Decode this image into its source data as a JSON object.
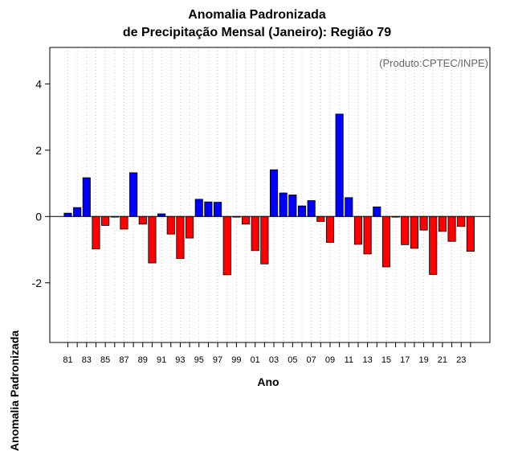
{
  "chart_data": {
    "type": "bar",
    "title": "Anomalia Padronizada",
    "subtitle": "de Precipitação Mensal (Janeiro): Região 79",
    "xlabel": "Ano",
    "ylabel": "Anomalia Padronizada",
    "annotation": "(Produto:CPTEC/INPE)",
    "ylim": [
      -3.8,
      5.1
    ],
    "yticks": [
      -2,
      0,
      2,
      4
    ],
    "xtick_labels": [
      "81",
      "83",
      "85",
      "87",
      "89",
      "91",
      "93",
      "95",
      "97",
      "99",
      "01",
      "03",
      "05",
      "07",
      "09",
      "11",
      "13",
      "15",
      "17",
      "19",
      "21",
      "23"
    ],
    "categories": [
      "1981",
      "1982",
      "1983",
      "1984",
      "1985",
      "1986",
      "1987",
      "1988",
      "1989",
      "1990",
      "1991",
      "1992",
      "1993",
      "1994",
      "1995",
      "1996",
      "1997",
      "1998",
      "1999",
      "2000",
      "2001",
      "2002",
      "2003",
      "2004",
      "2005",
      "2006",
      "2007",
      "2008",
      "2009",
      "2010",
      "2011",
      "2012",
      "2013",
      "2014",
      "2015",
      "2016",
      "2017",
      "2018",
      "2019",
      "2020",
      "2021",
      "2022",
      "2023",
      "2024"
    ],
    "values": [
      0.1,
      0.27,
      1.17,
      -0.98,
      -0.27,
      0.0,
      -0.38,
      1.32,
      -0.23,
      -1.4,
      0.08,
      -0.53,
      -1.27,
      -0.65,
      0.52,
      0.44,
      0.43,
      -1.76,
      0.0,
      -0.23,
      -1.03,
      -1.43,
      1.41,
      0.71,
      0.65,
      0.32,
      0.48,
      -0.15,
      -0.78,
      3.09,
      0.57,
      -0.84,
      -1.13,
      0.29,
      -1.52,
      -0.02,
      -0.85,
      -0.96,
      -0.41,
      -1.75,
      -0.45,
      -0.75,
      -0.3,
      -1.05
    ],
    "colors": {
      "positive": "#0000ff",
      "negative": "#ff0000"
    }
  }
}
